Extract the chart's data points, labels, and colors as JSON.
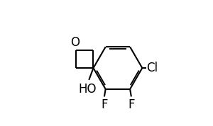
{
  "background_color": "#ffffff",
  "line_color": "#000000",
  "line_width": 1.5,
  "font_size_label": 12,
  "figsize": [
    3.0,
    1.78
  ],
  "dpi": 100,
  "xlim": [
    0.0,
    1.05
  ],
  "ylim": [
    0.0,
    1.0
  ]
}
